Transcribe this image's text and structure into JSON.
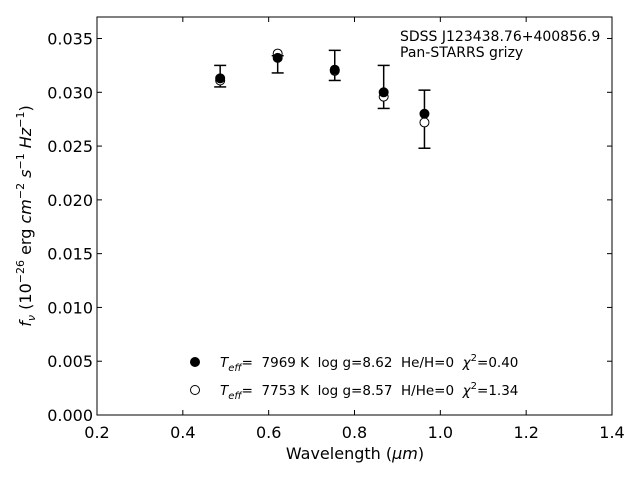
{
  "chart_data": {
    "type": "scatter",
    "xlabel_main": "Wavelength (",
    "xlabel_unit": "μm",
    "xlabel_close": ")",
    "ylabel": {
      "f": "f",
      "nu": "ν",
      "open": " (10",
      "exp26": "−26",
      "erg": " erg ",
      "cm": "cm",
      "exp2": "−2",
      "s": " s",
      "exp1a": "−1",
      "hz": " Hz",
      "exp1b": "−1",
      "close": ")"
    },
    "xlim": [
      0.2,
      1.4
    ],
    "ylim": [
      0.0,
      0.037
    ],
    "xticks": [
      0.2,
      0.4,
      0.6,
      0.8,
      1.0,
      1.2,
      1.4
    ],
    "xtick_labels": [
      "0.2",
      "0.4",
      "0.6",
      "0.8",
      "1.0",
      "1.2",
      "1.4"
    ],
    "yticks": [
      0.0,
      0.005,
      0.01,
      0.015,
      0.02,
      0.025,
      0.03,
      0.035
    ],
    "ytick_labels": [
      "0.000",
      "0.005",
      "0.010",
      "0.015",
      "0.020",
      "0.025",
      "0.030",
      "0.035"
    ],
    "annotation": [
      "SDSS J123438.76+400856.9",
      "Pan-STARRS grizy"
    ],
    "observed": {
      "x": [
        0.487,
        0.621,
        0.754,
        0.868,
        0.963
      ],
      "y": [
        0.0315,
        0.0326,
        0.0325,
        0.0305,
        0.0275
      ],
      "yerr": [
        0.001,
        0.0008,
        0.0014,
        0.002,
        0.0027
      ]
    },
    "series": [
      {
        "marker": "filled",
        "x": [
          0.487,
          0.621,
          0.754,
          0.868,
          0.963
        ],
        "y": [
          0.0313,
          0.0332,
          0.0321,
          0.03,
          0.028
        ],
        "legend": {
          "teff_label": "T",
          "teff_sub": "eff",
          "rest": "=  7969 K  log g=8.62  He/H=0  ",
          "chi": "χ",
          "chi_exp": "2",
          "chi_val": "=0.40"
        }
      },
      {
        "marker": "open",
        "x": [
          0.487,
          0.621,
          0.754,
          0.868,
          0.963
        ],
        "y": [
          0.0311,
          0.0336,
          0.032,
          0.0296,
          0.0272
        ],
        "legend": {
          "teff_label": "T",
          "teff_sub": "eff",
          "rest": "=  7753 K  log g=8.57  H/He=0  ",
          "chi": "χ",
          "chi_exp": "2",
          "chi_val": "=1.34"
        }
      }
    ],
    "colors": {
      "axis": "#000000",
      "marker": "#000000",
      "background": "#ffffff"
    }
  }
}
